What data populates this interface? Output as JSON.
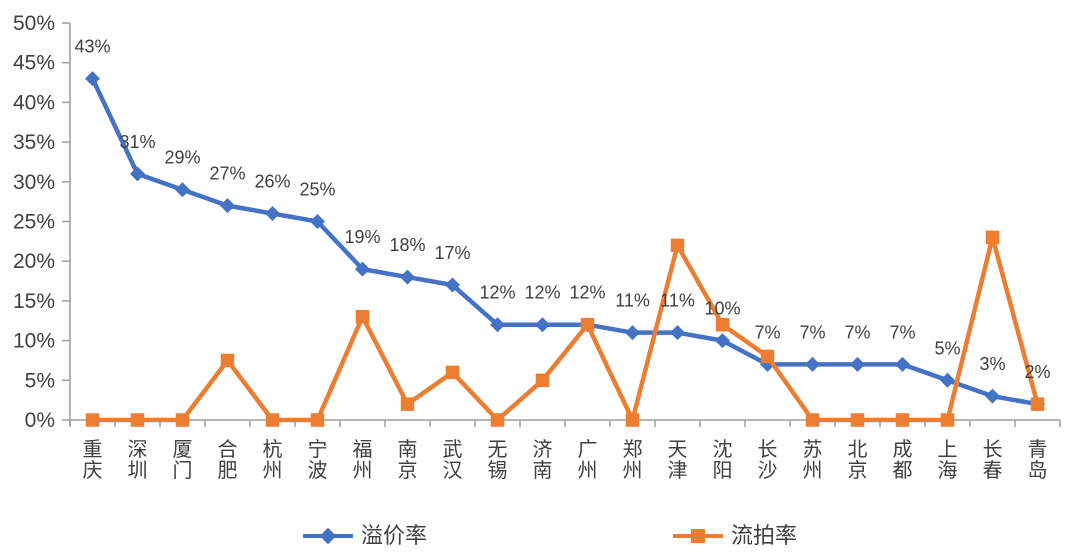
{
  "chart_data": {
    "type": "line",
    "title": "",
    "categories": [
      "重庆",
      "深圳",
      "厦门",
      "合肥",
      "杭州",
      "宁波",
      "福州",
      "南京",
      "武汉",
      "无锡",
      "济南",
      "广州",
      "郑州",
      "天津",
      "沈阳",
      "长沙",
      "苏州",
      "北京",
      "成都",
      "上海",
      "长春",
      "青岛"
    ],
    "series": [
      {
        "id": "premium-rate",
        "name": "溢价率",
        "color": "#4472C4",
        "marker": "diamond",
        "values": [
          43,
          31,
          29,
          27,
          26,
          25,
          19,
          18,
          17,
          12,
          12,
          12,
          11,
          11,
          10,
          7,
          7,
          7,
          7,
          5,
          3,
          2
        ],
        "data_labels": [
          "43%",
          "31%",
          "29%",
          "27%",
          "26%",
          "25%",
          "19%",
          "18%",
          "17%",
          "12%",
          "12%",
          "12%",
          "11%",
          "11%",
          "10%",
          "7%",
          "7%",
          "7%",
          "7%",
          "5%",
          "3%",
          "2%"
        ]
      },
      {
        "id": "failure-rate",
        "name": "流拍率",
        "color": "#ED7D31",
        "marker": "square",
        "values": [
          0,
          0,
          0,
          7.5,
          0,
          0,
          13,
          2,
          6,
          0,
          5,
          12,
          0,
          22,
          12,
          8,
          0,
          0,
          0,
          0,
          23,
          2
        ],
        "data_labels": null
      }
    ],
    "yaxis": {
      "min": 0,
      "max": 50,
      "step": 5,
      "tick_labels": [
        "0%",
        "5%",
        "10%",
        "15%",
        "20%",
        "25%",
        "30%",
        "35%",
        "40%",
        "45%",
        "50%"
      ]
    },
    "xaxis": {
      "label_orientation": "vertical"
    },
    "legend": {
      "position": "bottom",
      "entries": [
        "溢价率",
        "流拍率"
      ]
    },
    "grid": false,
    "colors": {
      "axis": "#9E9E9E",
      "text": "#404040",
      "data_label": "#404040"
    }
  }
}
